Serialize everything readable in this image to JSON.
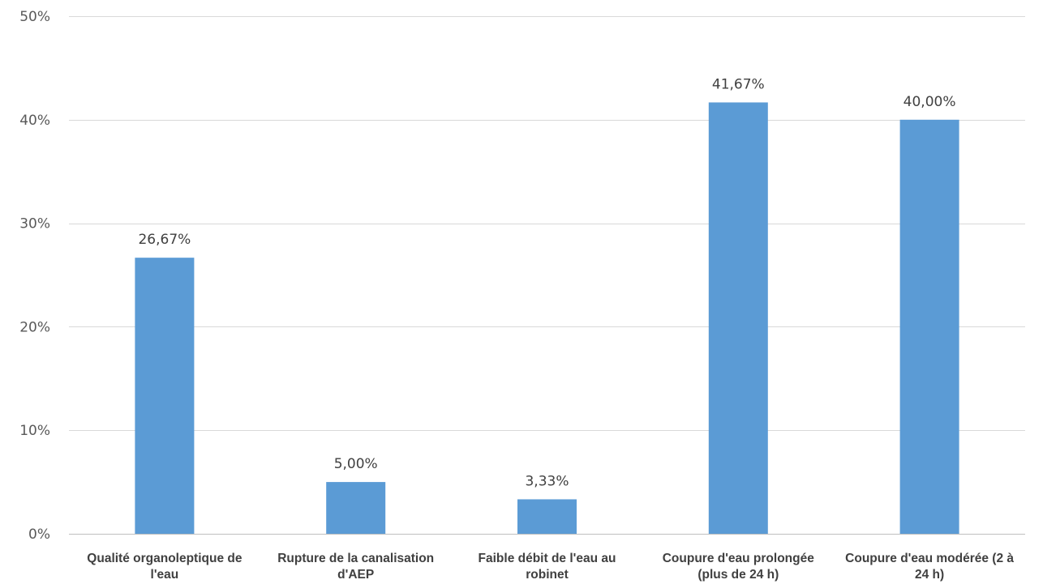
{
  "chart_data": {
    "type": "bar",
    "categories": [
      [
        "Qualité organoleptique de",
        "l'eau"
      ],
      [
        "Rupture de la canalisation",
        "d'AEP"
      ],
      [
        "Faible débit de l'eau au",
        "robinet"
      ],
      [
        "Coupure d'eau prolongée",
        "(plus de 24 h)"
      ],
      [
        "Coupure d'eau modérée (2 à",
        "24 h)"
      ]
    ],
    "values": [
      26.67,
      5.0,
      3.33,
      41.67,
      40.0
    ],
    "data_labels": [
      "26,67%",
      "5,00%",
      "3,33%",
      "41,67%",
      "40,00%"
    ],
    "yticks": [
      0,
      10,
      20,
      30,
      40,
      50
    ],
    "ytick_labels": [
      "0%",
      "10%",
      "20%",
      "30%",
      "40%",
      "50%"
    ],
    "ylim": [
      0,
      50
    ],
    "grid": true,
    "bar_color": "#5b9bd5",
    "title": "",
    "xlabel": "",
    "ylabel": ""
  }
}
